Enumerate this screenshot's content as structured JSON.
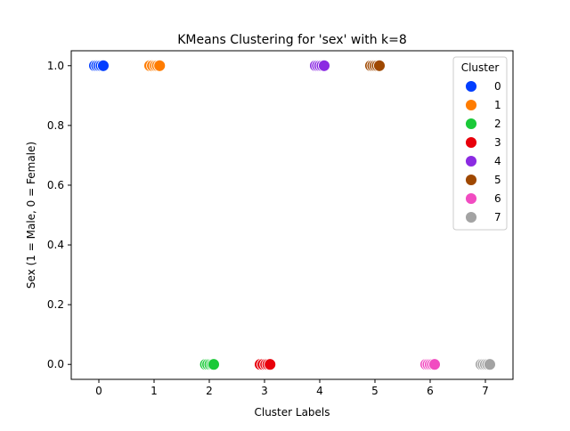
{
  "chart_data": {
    "type": "scatter",
    "title": "KMeans Clustering for 'sex' with k=8",
    "xlabel": "Cluster Labels",
    "ylabel": "Sex (1 = Male, 0 = Female)",
    "xlim": [
      -0.5,
      7.5
    ],
    "ylim": [
      -0.05,
      1.05
    ],
    "xticks": [
      0,
      1,
      2,
      3,
      4,
      5,
      6,
      7
    ],
    "xtick_labels": [
      "0",
      "1",
      "2",
      "3",
      "4",
      "5",
      "6",
      "7"
    ],
    "yticks": [
      0.0,
      0.2,
      0.4,
      0.6,
      0.8,
      1.0
    ],
    "ytick_labels": [
      "0.0",
      "0.2",
      "0.4",
      "0.6",
      "0.8",
      "1.0"
    ],
    "grid": false,
    "legend": {
      "title": "Cluster",
      "placement": "top-right"
    },
    "series": [
      {
        "name": "0",
        "color": "#023eff",
        "x": [
          -0.08,
          -0.04,
          0.0,
          0.04,
          0.08
        ],
        "y": [
          1,
          1,
          1,
          1,
          1
        ]
      },
      {
        "name": "1",
        "color": "#ff7c00",
        "x": [
          0.92,
          0.97,
          1.02,
          1.06,
          1.1
        ],
        "y": [
          1,
          1,
          1,
          1,
          1
        ]
      },
      {
        "name": "2",
        "color": "#1ac938",
        "x": [
          1.93,
          1.97,
          2.01,
          2.05,
          2.08
        ],
        "y": [
          0,
          0,
          0,
          0,
          0
        ]
      },
      {
        "name": "3",
        "color": "#e8000b",
        "x": [
          2.92,
          2.97,
          3.02,
          3.06,
          3.1
        ],
        "y": [
          0,
          0,
          0,
          0,
          0
        ]
      },
      {
        "name": "4",
        "color": "#8b2be2",
        "x": [
          3.92,
          3.96,
          4.0,
          4.04,
          4.08
        ],
        "y": [
          1,
          1,
          1,
          1,
          1
        ]
      },
      {
        "name": "5",
        "color": "#9f4800",
        "x": [
          4.92,
          4.96,
          5.0,
          5.04,
          5.08
        ],
        "y": [
          1,
          1,
          1,
          1,
          1
        ]
      },
      {
        "name": "6",
        "color": "#f14cc1",
        "x": [
          5.92,
          5.96,
          6.0,
          6.04,
          6.08
        ],
        "y": [
          0,
          0,
          0,
          0,
          0
        ]
      },
      {
        "name": "7",
        "color": "#a3a3a3",
        "x": [
          6.92,
          6.96,
          7.0,
          7.04,
          7.08
        ],
        "y": [
          0,
          0,
          0,
          0,
          0
        ]
      }
    ]
  }
}
